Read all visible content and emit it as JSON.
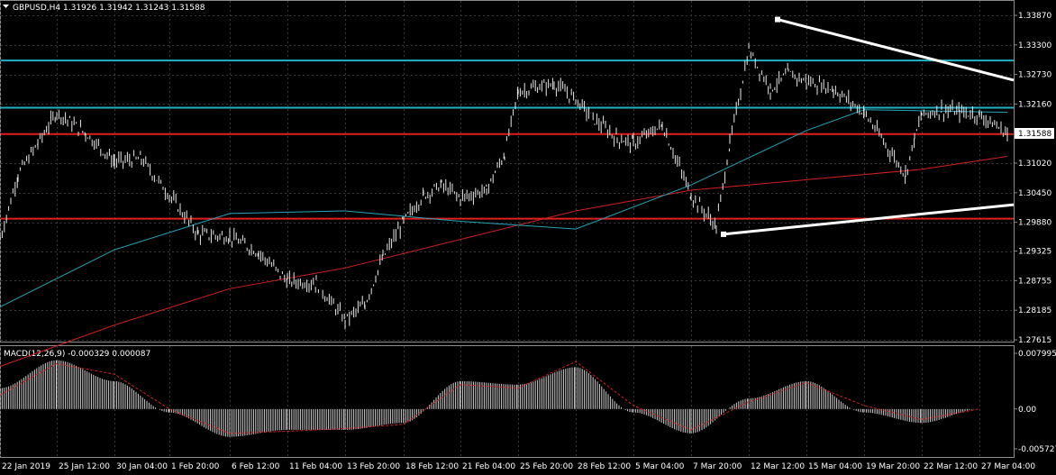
{
  "chart_data": [
    {
      "type": "line",
      "title": "GBPUSD,H4  1.31926 1.31942 1.31243 1.31588",
      "symbol_label": "GBPUSD,H4",
      "ohlc_label": "1.31926 1.31942 1.31243 1.31588",
      "ylim": [
        1.27615,
        1.3387
      ],
      "y_ticks": [
        "1.33870",
        "1.33300",
        "1.32730",
        "1.32160",
        "1.31020",
        "1.30450",
        "1.29880",
        "1.29325",
        "1.28755",
        "1.28185",
        "1.27615"
      ],
      "x_ticks": [
        "22 Jan 2019",
        "25 Jan 12:00",
        "30 Jan 04:00",
        "1 Feb 20:00",
        "6 Feb 12:00",
        "11 Feb 04:00",
        "13 Feb 20:00",
        "18 Feb 12:00",
        "21 Feb 04:00",
        "25 Feb 20:00",
        "28 Feb 12:00",
        "5 Mar 04:00",
        "7 Mar 20:00",
        "12 Mar 12:00",
        "15 Mar 04:00",
        "19 Mar 20:00",
        "22 Mar 12:00",
        "27 Mar 04:00"
      ],
      "current_price": "1.31588",
      "horizontal_levels": [
        {
          "price": 1.33,
          "color": "#20b2c4"
        },
        {
          "price": 1.3209,
          "color": "#20b2c4"
        },
        {
          "price": 1.3158,
          "color": "#e0201c"
        },
        {
          "price": 1.2995,
          "color": "#e0201c"
        }
      ],
      "trendlines": [
        {
          "points": [
            [
              "12 Mar 12:00",
              1.3379
            ],
            [
              "27 Mar 08:00",
              1.3262
            ]
          ],
          "color": "#ffffff"
        },
        {
          "points": [
            [
              "7 Mar 20:00",
              1.2965
            ],
            [
              "27 Mar 08:00",
              1.3022
            ]
          ],
          "color": "#ffffff"
        }
      ],
      "series": [
        {
          "kind": "price",
          "color": "#ffffff",
          "x": [
            "22 Jan 2019",
            "23 Jan",
            "24 Jan",
            "25 Jan 12:00",
            "28 Jan",
            "30 Jan 04:00",
            "31 Jan",
            "1 Feb 20:00",
            "4 Feb",
            "6 Feb 12:00",
            "8 Feb",
            "11 Feb 04:00",
            "12 Feb",
            "13 Feb 20:00",
            "14 Feb",
            "15 Feb",
            "18 Feb 12:00",
            "19 Feb",
            "20 Feb",
            "21 Feb 04:00",
            "22 Feb",
            "25 Feb",
            "25 Feb 20:00",
            "27 Feb",
            "28 Feb 12:00",
            "1 Mar",
            "4 Mar",
            "5 Mar 04:00",
            "6 Mar",
            "7 Mar 20:00",
            "8 Mar",
            "11 Mar",
            "12 Mar 12:00",
            "13 Mar",
            "14 Mar",
            "15 Mar 04:00",
            "18 Mar",
            "19 Mar 20:00",
            "20 Mar",
            "21 Mar",
            "22 Mar 12:00",
            "25 Mar",
            "26 Mar",
            "27 Mar 04:00",
            "27 Mar 16:00"
          ],
          "values": [
            1.2955,
            1.308,
            1.314,
            1.32,
            1.316,
            1.3105,
            1.311,
            1.304,
            1.2965,
            1.296,
            1.293,
            1.2875,
            1.287,
            1.28,
            1.283,
            1.292,
            1.299,
            1.304,
            1.306,
            1.3035,
            1.305,
            1.312,
            1.324,
            1.3255,
            1.3225,
            1.3185,
            1.315,
            1.314,
            1.3175,
            1.304,
            1.298,
            1.314,
            1.332,
            1.3245,
            1.3275,
            1.326,
            1.3245,
            1.32,
            1.308,
            1.315,
            1.3195,
            1.3205,
            1.32,
            1.3195,
            1.3159
          ]
        },
        {
          "kind": "ma_slow",
          "color": "#d42020",
          "x": [
            "22 Jan 2019",
            "30 Jan 04:00",
            "6 Feb 12:00",
            "13 Feb 20:00",
            "21 Feb 04:00",
            "28 Feb 12:00",
            "7 Mar 20:00",
            "15 Mar 04:00",
            "22 Mar 12:00",
            "27 Mar 16:00"
          ],
          "values": [
            1.271,
            1.279,
            1.286,
            1.29,
            1.2955,
            1.301,
            1.305,
            1.307,
            1.309,
            1.3115
          ]
        },
        {
          "kind": "ma_fast",
          "color": "#22a6b8",
          "x": [
            "22 Jan 2019",
            "30 Jan 04:00",
            "6 Feb 12:00",
            "13 Feb 20:00",
            "21 Feb 04:00",
            "28 Feb 12:00",
            "7 Mar 20:00",
            "15 Mar 04:00",
            "19 Mar 20:00",
            "27 Mar 16:00"
          ],
          "values": [
            1.2825,
            1.2935,
            1.3005,
            1.301,
            1.299,
            1.2975,
            1.306,
            1.3165,
            1.3205,
            1.32
          ]
        }
      ]
    },
    {
      "type": "bar",
      "title": "MACD(12,26,9) -0.000329 0.000087",
      "label": "MACD(12,26,9) -0.000329 0.000087",
      "ylim": [
        -0.005727,
        0.007995
      ],
      "y_ticks": [
        "0.007995",
        "0.00",
        "-0.005727"
      ],
      "series": [
        {
          "kind": "histogram",
          "color": "#cfcfcf",
          "x": [
            "22 Jan 2019",
            "25 Jan 12:00",
            "30 Jan 04:00",
            "1 Feb 20:00",
            "6 Feb 12:00",
            "11 Feb 04:00",
            "13 Feb 20:00",
            "18 Feb 12:00",
            "21 Feb 04:00",
            "25 Feb 20:00",
            "28 Feb 12:00",
            "5 Mar 04:00",
            "7 Mar 20:00",
            "12 Mar 12:00",
            "15 Mar 04:00",
            "19 Mar 20:00",
            "22 Mar 12:00",
            "27 Mar 04:00"
          ],
          "values": [
            0.003,
            0.007,
            0.004,
            -0.0005,
            -0.004,
            -0.003,
            -0.003,
            -0.002,
            0.004,
            0.0035,
            0.006,
            -0.0005,
            -0.0035,
            0.0015,
            0.004,
            -0.0005,
            -0.002,
            0.0
          ]
        },
        {
          "kind": "signal",
          "color": "#d42020",
          "x": [
            "22 Jan 2019",
            "25 Jan 12:00",
            "30 Jan 04:00",
            "1 Feb 20:00",
            "6 Feb 12:00",
            "11 Feb 04:00",
            "13 Feb 20:00",
            "18 Feb 12:00",
            "21 Feb 04:00",
            "25 Feb 20:00",
            "28 Feb 12:00",
            "5 Mar 04:00",
            "7 Mar 20:00",
            "12 Mar 12:00",
            "15 Mar 04:00",
            "19 Mar 20:00",
            "22 Mar 12:00",
            "27 Mar 04:00"
          ],
          "values": [
            0.002,
            0.0065,
            0.005,
            0.0,
            -0.0035,
            -0.0032,
            -0.0028,
            -0.0022,
            0.0035,
            0.003,
            0.0068,
            0.0005,
            -0.003,
            0.001,
            0.0038,
            0.0005,
            -0.0015,
            0.0
          ]
        }
      ]
    }
  ]
}
